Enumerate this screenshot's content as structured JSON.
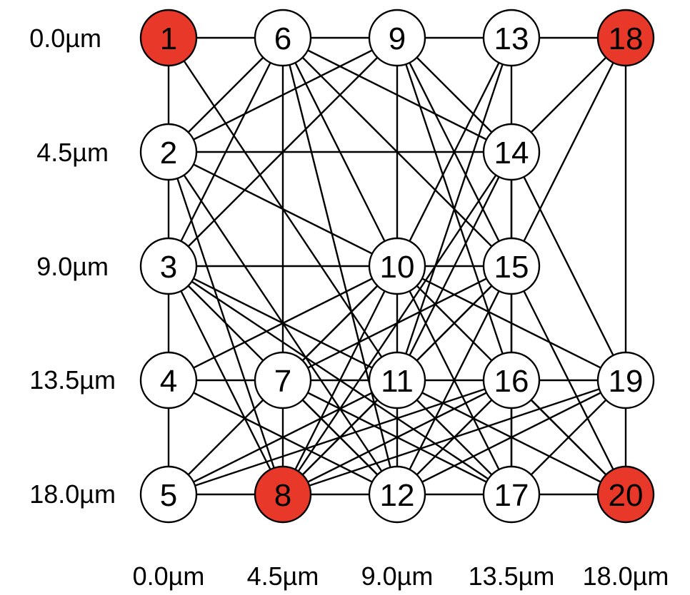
{
  "diagram": {
    "row_labels": [
      "0.0µm",
      "4.5µm",
      "9.0µm",
      "13.5µm",
      "18.0µm"
    ],
    "col_labels": [
      "0.0µm",
      "4.5µm",
      "9.0µm",
      "13.5µm",
      "18.0µm"
    ],
    "colors": {
      "highlight": "#e8382a",
      "normal": "#ffffff",
      "stroke": "#000000"
    },
    "nodes": [
      {
        "id": "1",
        "row": 0,
        "col": 0,
        "highlight": true
      },
      {
        "id": "6",
        "row": 0,
        "col": 1,
        "highlight": false
      },
      {
        "id": "9",
        "row": 0,
        "col": 2,
        "highlight": false
      },
      {
        "id": "13",
        "row": 0,
        "col": 3,
        "highlight": false
      },
      {
        "id": "18",
        "row": 0,
        "col": 4,
        "highlight": true
      },
      {
        "id": "2",
        "row": 1,
        "col": 0,
        "highlight": false
      },
      {
        "id": "14",
        "row": 1,
        "col": 3,
        "highlight": false
      },
      {
        "id": "3",
        "row": 2,
        "col": 0,
        "highlight": false
      },
      {
        "id": "10",
        "row": 2,
        "col": 2,
        "highlight": false
      },
      {
        "id": "15",
        "row": 2,
        "col": 3,
        "highlight": false
      },
      {
        "id": "4",
        "row": 3,
        "col": 0,
        "highlight": false
      },
      {
        "id": "7",
        "row": 3,
        "col": 1,
        "highlight": false
      },
      {
        "id": "11",
        "row": 3,
        "col": 2,
        "highlight": false
      },
      {
        "id": "16",
        "row": 3,
        "col": 3,
        "highlight": false
      },
      {
        "id": "19",
        "row": 3,
        "col": 4,
        "highlight": false
      },
      {
        "id": "5",
        "row": 4,
        "col": 0,
        "highlight": false
      },
      {
        "id": "8",
        "row": 4,
        "col": 1,
        "highlight": true
      },
      {
        "id": "12",
        "row": 4,
        "col": 2,
        "highlight": false
      },
      {
        "id": "17",
        "row": 4,
        "col": 3,
        "highlight": false
      },
      {
        "id": "20",
        "row": 4,
        "col": 4,
        "highlight": true
      }
    ],
    "edges": [
      [
        "1",
        "6"
      ],
      [
        "6",
        "9"
      ],
      [
        "9",
        "13"
      ],
      [
        "13",
        "18"
      ],
      [
        "5",
        "8"
      ],
      [
        "8",
        "12"
      ],
      [
        "12",
        "17"
      ],
      [
        "17",
        "20"
      ],
      [
        "1",
        "2"
      ],
      [
        "2",
        "3"
      ],
      [
        "3",
        "4"
      ],
      [
        "4",
        "5"
      ],
      [
        "2",
        "14"
      ],
      [
        "3",
        "10"
      ],
      [
        "10",
        "15"
      ],
      [
        "4",
        "7"
      ],
      [
        "7",
        "11"
      ],
      [
        "11",
        "16"
      ],
      [
        "16",
        "19"
      ],
      [
        "6",
        "7"
      ],
      [
        "7",
        "8"
      ],
      [
        "9",
        "10"
      ],
      [
        "10",
        "11"
      ],
      [
        "11",
        "12"
      ],
      [
        "13",
        "14"
      ],
      [
        "14",
        "15"
      ],
      [
        "15",
        "16"
      ],
      [
        "16",
        "17"
      ],
      [
        "18",
        "19"
      ],
      [
        "19",
        "20"
      ],
      [
        "1",
        "11"
      ],
      [
        "6",
        "2"
      ],
      [
        "6",
        "3"
      ],
      [
        "9",
        "2"
      ],
      [
        "9",
        "3"
      ],
      [
        "6",
        "10"
      ],
      [
        "6",
        "15"
      ],
      [
        "6",
        "14"
      ],
      [
        "6",
        "12"
      ],
      [
        "9",
        "14"
      ],
      [
        "9",
        "15"
      ],
      [
        "9",
        "16"
      ],
      [
        "13",
        "10"
      ],
      [
        "13",
        "11"
      ],
      [
        "18",
        "14"
      ],
      [
        "18",
        "15"
      ],
      [
        "2",
        "8"
      ],
      [
        "2",
        "10"
      ],
      [
        "2",
        "12"
      ],
      [
        "3",
        "8"
      ],
      [
        "3",
        "11"
      ],
      [
        "3",
        "12"
      ],
      [
        "3",
        "17"
      ],
      [
        "4",
        "10"
      ],
      [
        "4",
        "12"
      ],
      [
        "5",
        "10"
      ],
      [
        "5",
        "11"
      ],
      [
        "5",
        "16"
      ],
      [
        "7",
        "10"
      ],
      [
        "7",
        "15"
      ],
      [
        "7",
        "12"
      ],
      [
        "7",
        "17"
      ],
      [
        "8",
        "10"
      ],
      [
        "8",
        "11"
      ],
      [
        "8",
        "14"
      ],
      [
        "8",
        "15"
      ],
      [
        "8",
        "16"
      ],
      [
        "8",
        "19"
      ],
      [
        "10",
        "17"
      ],
      [
        "10",
        "19"
      ],
      [
        "10",
        "20"
      ],
      [
        "11",
        "14"
      ],
      [
        "11",
        "15"
      ],
      [
        "11",
        "17"
      ],
      [
        "11",
        "20"
      ],
      [
        "12",
        "15"
      ],
      [
        "12",
        "16"
      ],
      [
        "12",
        "19"
      ],
      [
        "14",
        "17"
      ],
      [
        "14",
        "19"
      ],
      [
        "15",
        "20"
      ],
      [
        "16",
        "20"
      ],
      [
        "17",
        "19"
      ]
    ]
  }
}
